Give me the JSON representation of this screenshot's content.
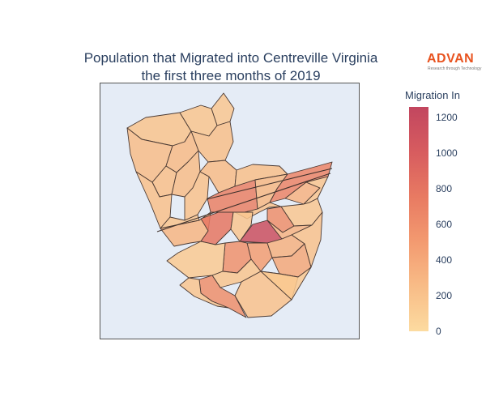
{
  "title": {
    "line1": "Population that Migrated into Centreville Virginia",
    "line2": "the first three months of 2019"
  },
  "logo": {
    "word": "ADVAN",
    "tagline": "Research through Technology",
    "color": "#e8531f"
  },
  "colorbar": {
    "title": "Migration In",
    "min": 0,
    "max": 1260,
    "ticks": [
      "0",
      "200",
      "400",
      "600",
      "800",
      "1000",
      "1200"
    ],
    "tick_values": [
      0,
      200,
      400,
      600,
      800,
      1000,
      1200
    ],
    "colorscale": [
      "#fcdba0",
      "#f8bc87",
      "#f39a70",
      "#e87a62",
      "#d75c5f",
      "#c2465f"
    ]
  },
  "map": {
    "background": "#e5ecf6",
    "border_color": "#555555",
    "region_fill_opacity": 0.85,
    "regions": [
      {
        "name": "r1",
        "value": 160
      },
      {
        "name": "r2",
        "value": 190
      },
      {
        "name": "r3",
        "value": 240
      },
      {
        "name": "r4",
        "value": 180
      },
      {
        "name": "r5",
        "value": 230
      },
      {
        "name": "r6",
        "value": 260
      },
      {
        "name": "r7",
        "value": 220
      },
      {
        "name": "r8",
        "value": 240
      },
      {
        "name": "r9",
        "value": 210
      },
      {
        "name": "r10",
        "value": 200
      },
      {
        "name": "r11",
        "value": 250
      },
      {
        "name": "r12",
        "value": 190
      },
      {
        "name": "r13",
        "value": 700
      },
      {
        "name": "r14",
        "value": 230
      },
      {
        "name": "r15",
        "value": 280
      },
      {
        "name": "r16",
        "value": 670
      },
      {
        "name": "r17",
        "value": 320
      },
      {
        "name": "r18",
        "value": 170
      },
      {
        "name": "r19",
        "value": 160
      },
      {
        "name": "r20",
        "value": 200
      },
      {
        "name": "r21",
        "value": 590
      },
      {
        "name": "r22",
        "value": 300
      },
      {
        "name": "r23",
        "value": 780
      },
      {
        "name": "r24",
        "value": 1150
      },
      {
        "name": "r25",
        "value": 170
      },
      {
        "name": "r26",
        "value": 310
      },
      {
        "name": "r27",
        "value": 200
      },
      {
        "name": "r28",
        "value": 480
      },
      {
        "name": "r29",
        "value": 570
      },
      {
        "name": "r30",
        "value": 330
      },
      {
        "name": "r31",
        "value": 140
      },
      {
        "name": "r32",
        "value": 180
      },
      {
        "name": "r33",
        "value": 400
      },
      {
        "name": "r34",
        "value": 590
      },
      {
        "name": "r35",
        "value": 170
      },
      {
        "name": "r36",
        "value": 200
      },
      {
        "name": "r37",
        "value": 150
      }
    ]
  }
}
